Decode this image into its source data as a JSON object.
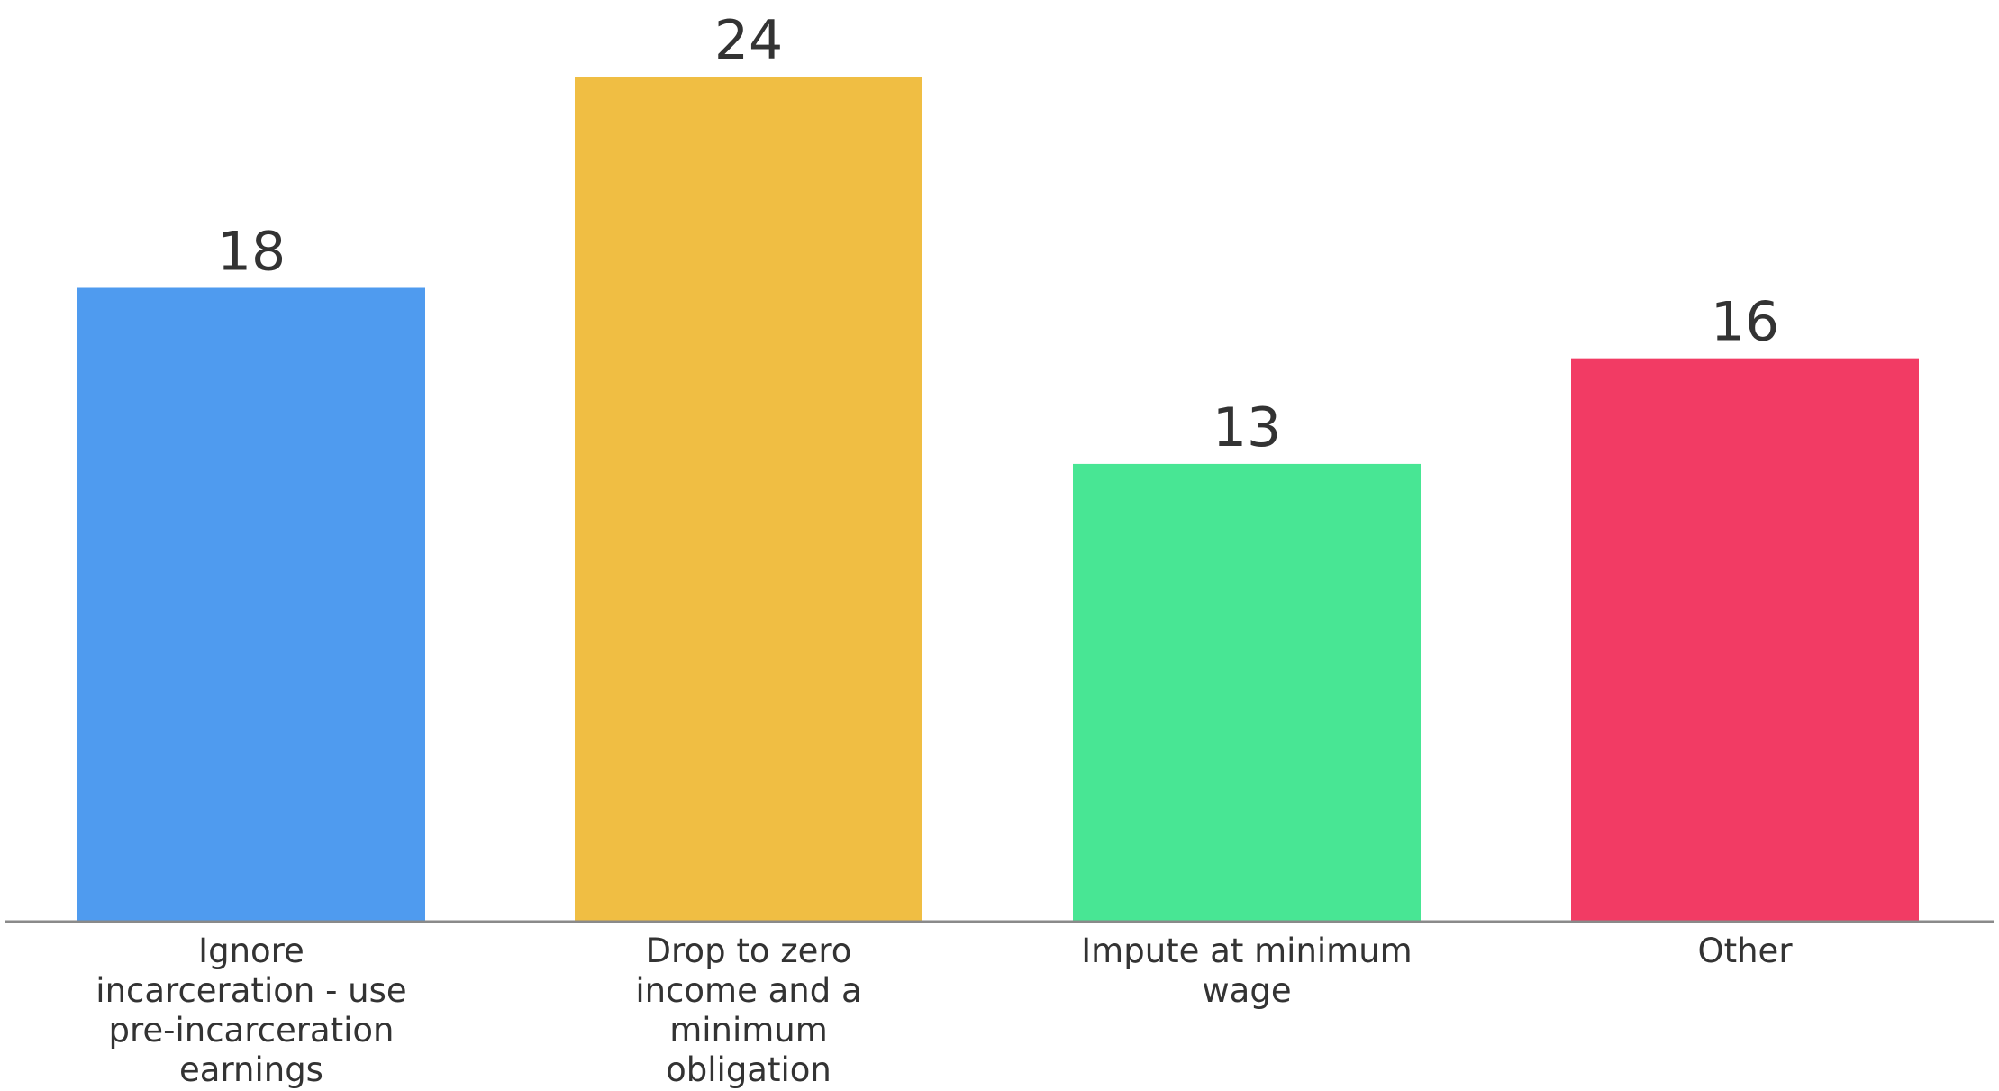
{
  "chart_data": {
    "type": "bar",
    "title": "",
    "xlabel": "",
    "ylabel": "",
    "ylim": [
      0,
      24
    ],
    "grid": false,
    "legend": "none",
    "categories": [
      "Ignore incarceration - use pre-incarceration earnings",
      "Drop to zero income and a minimum obligation",
      "Impute at minimum wage",
      "Other"
    ],
    "category_label_lines": [
      [
        "Ignore",
        "incarceration - use",
        "pre-incarceration",
        "earnings"
      ],
      [
        "Drop to zero",
        "income and a",
        "minimum",
        "obligation"
      ],
      [
        "Impute at minimum",
        "wage"
      ],
      [
        "Other"
      ]
    ],
    "values": [
      18,
      24,
      13,
      16
    ],
    "value_labels": [
      "18",
      "24",
      "13",
      "16"
    ],
    "colors": [
      "#4F9BEF",
      "#F0BE43",
      "#48E694",
      "#F23B64"
    ],
    "axis_color": "#8A8A8A",
    "text_color": "#333333"
  }
}
